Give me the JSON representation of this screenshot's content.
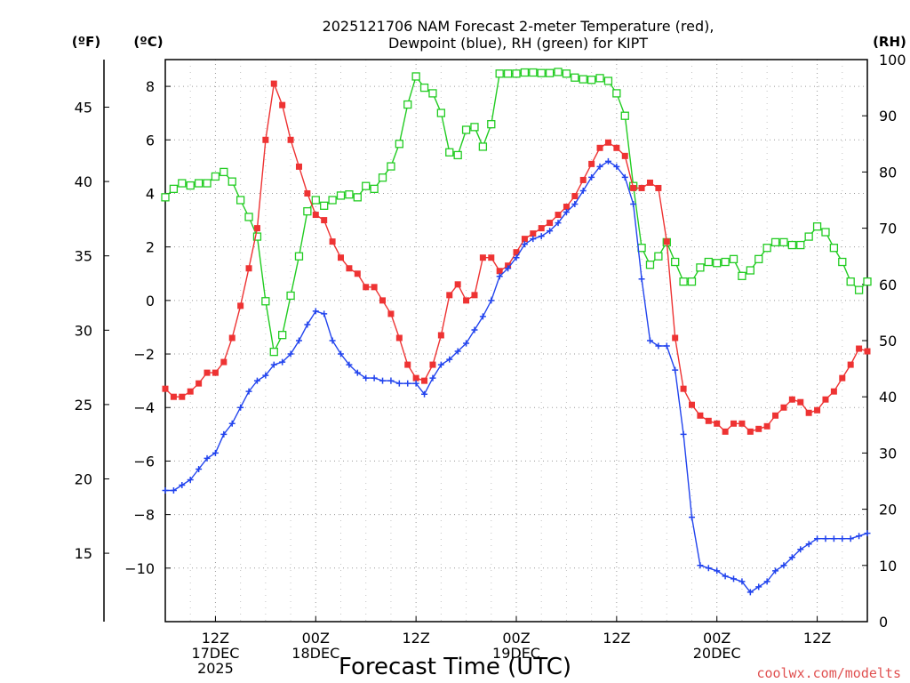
{
  "chart_data": {
    "type": "line",
    "title_line1": "2025121706 NAM Forecast 2-meter Temperature (red),",
    "title_line2": "Dewpoint (blue), RH (green) for KIPT",
    "xlabel": "Forecast Time (UTC)",
    "left_outer_unit": "(ºF)",
    "left_inner_unit": "(ºC)",
    "right_unit": "(RH)",
    "watermark": "coolwx.com/modelts",
    "x_range_hours": [
      0,
      84
    ],
    "x_ticks": [
      {
        "hour": 6,
        "lines": [
          "12Z",
          "17DEC",
          "2025"
        ]
      },
      {
        "hour": 18,
        "lines": [
          "00Z",
          "18DEC"
        ]
      },
      {
        "hour": 30,
        "lines": [
          "12Z"
        ]
      },
      {
        "hour": 42,
        "lines": [
          "00Z",
          "19DEC"
        ]
      },
      {
        "hour": 54,
        "lines": [
          "12Z"
        ]
      },
      {
        "hour": 66,
        "lines": [
          "00Z",
          "20DEC"
        ]
      },
      {
        "hour": 78,
        "lines": [
          "12Z"
        ]
      }
    ],
    "y_celsius": {
      "range": [
        -12,
        9
      ],
      "ticks": [
        8,
        6,
        4,
        2,
        0,
        -2,
        -4,
        -6,
        -8,
        -10
      ]
    },
    "y_fahrenheit": {
      "ticks": [
        45,
        40,
        35,
        30,
        25,
        20,
        15
      ]
    },
    "y_rh": {
      "range": [
        0,
        100
      ],
      "ticks": [
        100,
        90,
        80,
        70,
        60,
        50,
        40,
        30,
        20,
        10,
        0
      ]
    },
    "colors": {
      "temperature": "#ee3333",
      "dewpoint": "#2244ee",
      "rh": "#22cc22",
      "grid": "#9a9a9a",
      "watermark": "#e05050"
    },
    "series": [
      {
        "key": "temperature",
        "x": [
          0,
          1,
          2,
          3,
          4,
          5,
          6,
          7,
          8,
          9,
          10,
          11,
          12,
          13,
          14,
          15,
          16,
          17,
          18,
          19,
          20,
          21,
          22,
          23,
          24,
          25,
          26,
          27,
          28,
          29,
          30,
          31,
          32,
          33,
          34,
          35,
          36,
          37,
          38,
          39,
          40,
          41,
          42,
          43,
          44,
          45,
          46,
          47,
          48,
          49,
          50,
          51,
          52,
          53,
          54,
          55,
          56,
          57,
          58,
          59,
          60,
          61,
          62,
          63,
          64,
          65,
          66,
          67,
          68,
          69,
          70,
          71,
          72,
          73,
          74,
          75,
          76,
          77,
          78,
          79,
          80,
          81,
          82,
          83,
          84
        ],
        "values": [
          -3.3,
          -3.6,
          -3.6,
          -3.4,
          -3.1,
          -2.7,
          -2.7,
          -2.3,
          -1.4,
          -0.2,
          1.2,
          2.7,
          6,
          8.1,
          7.3,
          6,
          5,
          4,
          3.2,
          3,
          2.2,
          1.6,
          1.2,
          1,
          0.5,
          0.5,
          0,
          -0.5,
          -1.4,
          -2.4,
          -2.9,
          -3,
          -2.4,
          -1.3,
          0.2,
          0.6,
          0,
          0.2,
          1.6,
          1.6,
          1.1,
          1.3,
          1.8,
          2.3,
          2.5,
          2.7,
          2.9,
          3.2,
          3.5,
          3.9,
          4.5,
          5.1,
          5.7,
          5.9,
          5.7,
          5.4,
          4.2,
          4.2,
          4.4,
          4.2,
          2.2,
          -1.4,
          -3.3,
          -3.9,
          -4.3,
          -4.5,
          -4.6,
          -4.9,
          -4.6,
          -4.6,
          -4.9,
          -4.8,
          -4.7,
          -4.3,
          -4,
          -3.7,
          -3.8,
          -4.2,
          -4.1,
          -3.7,
          -3.4,
          -2.9,
          -2.4,
          -1.8,
          -1.9
        ]
      },
      {
        "key": "dewpoint",
        "x": [
          0,
          1,
          2,
          3,
          4,
          5,
          6,
          7,
          8,
          9,
          10,
          11,
          12,
          13,
          14,
          15,
          16,
          17,
          18,
          19,
          20,
          21,
          22,
          23,
          24,
          25,
          26,
          27,
          28,
          29,
          30,
          31,
          32,
          33,
          34,
          35,
          36,
          37,
          38,
          39,
          40,
          41,
          42,
          43,
          44,
          45,
          46,
          47,
          48,
          49,
          50,
          51,
          52,
          53,
          54,
          55,
          56,
          57,
          58,
          59,
          60,
          61,
          62,
          63,
          64,
          65,
          66,
          67,
          68,
          69,
          70,
          71,
          72,
          73,
          74,
          75,
          76,
          77,
          78,
          79,
          80,
          81,
          82,
          83,
          84
        ],
        "values": [
          -7.1,
          -7.1,
          -6.9,
          -6.7,
          -6.3,
          -5.9,
          -5.7,
          -5,
          -4.6,
          -4,
          -3.4,
          -3,
          -2.8,
          -2.4,
          -2.3,
          -2,
          -1.5,
          -0.9,
          -0.4,
          -0.5,
          -1.5,
          -2,
          -2.4,
          -2.7,
          -2.9,
          -2.9,
          -3,
          -3,
          -3.1,
          -3.1,
          -3.1,
          -3.5,
          -2.9,
          -2.4,
          -2.2,
          -1.9,
          -1.6,
          -1.1,
          -0.6,
          0,
          0.9,
          1.2,
          1.6,
          2.1,
          2.3,
          2.4,
          2.6,
          2.9,
          3.3,
          3.6,
          4.1,
          4.6,
          5,
          5.2,
          5,
          4.6,
          3.6,
          0.8,
          -1.5,
          -1.7,
          -1.7,
          -2.6,
          -5,
          -8.1,
          -9.9,
          -10,
          -10.1,
          -10.3,
          -10.4,
          -10.5,
          -10.9,
          -10.7,
          -10.5,
          -10.1,
          -9.9,
          -9.6,
          -9.3,
          -9.1,
          -8.9,
          -8.9,
          -8.9,
          -8.9,
          -8.9,
          -8.8,
          -8.7
        ]
      },
      {
        "key": "rh",
        "x": [
          0,
          1,
          2,
          3,
          4,
          5,
          6,
          7,
          8,
          9,
          10,
          11,
          12,
          13,
          14,
          15,
          16,
          17,
          18,
          19,
          20,
          21,
          22,
          23,
          24,
          25,
          26,
          27,
          28,
          29,
          30,
          31,
          32,
          33,
          34,
          35,
          36,
          37,
          38,
          39,
          40,
          41,
          42,
          43,
          44,
          45,
          46,
          47,
          48,
          49,
          50,
          51,
          52,
          53,
          54,
          55,
          56,
          57,
          58,
          59,
          60,
          61,
          62,
          63,
          64,
          65,
          66,
          67,
          68,
          69,
          70,
          71,
          72,
          73,
          74,
          75,
          76,
          77,
          78,
          79,
          80,
          81,
          82,
          83,
          84
        ],
        "values": [
          75.5,
          77,
          78,
          77.6,
          78,
          78,
          79.2,
          80,
          78.3,
          75,
          72,
          68.5,
          57,
          48,
          51,
          58,
          65,
          73,
          75,
          74,
          75,
          75.8,
          76,
          75.5,
          77.5,
          77,
          79,
          81,
          85,
          92,
          97,
          95,
          94,
          90.5,
          83.5,
          83,
          87.5,
          88,
          84.5,
          88.5,
          97.5,
          97.5,
          97.5,
          97.7,
          97.7,
          97.6,
          97.6,
          97.8,
          97.5,
          96.8,
          96.5,
          96.4,
          96.7,
          96.2,
          94,
          90,
          77.5,
          66.5,
          63.5,
          65,
          67.5,
          64,
          60.5,
          60.5,
          63,
          64,
          63.8,
          64,
          64.5,
          61.5,
          62.5,
          64.5,
          66.5,
          67.5,
          67.5,
          67,
          67,
          68.5,
          70.3,
          69.3,
          66.5,
          64,
          60.5,
          59,
          60.5
        ]
      }
    ]
  }
}
